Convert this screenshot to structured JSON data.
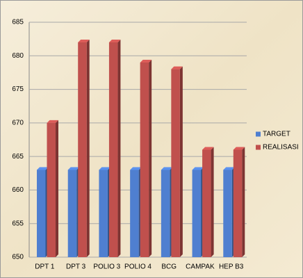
{
  "chart_data": {
    "type": "bar",
    "categories": [
      "DPT 1",
      "DPT 3",
      "POLIO 3",
      "POLIO 4",
      "BCG",
      "CAMPAK",
      "HEP B3"
    ],
    "series": [
      {
        "name": "TARGET",
        "color": "#4f7fd0",
        "values": [
          663,
          663,
          663,
          663,
          663,
          663,
          663
        ]
      },
      {
        "name": "REALISASI",
        "color": "#c0504d",
        "values": [
          670,
          682,
          682,
          679,
          678,
          666,
          666
        ]
      }
    ],
    "ylim": [
      650,
      685
    ],
    "yticks": [
      650,
      655,
      660,
      665,
      670,
      675,
      680,
      685
    ],
    "grid": true,
    "legend": "right"
  }
}
